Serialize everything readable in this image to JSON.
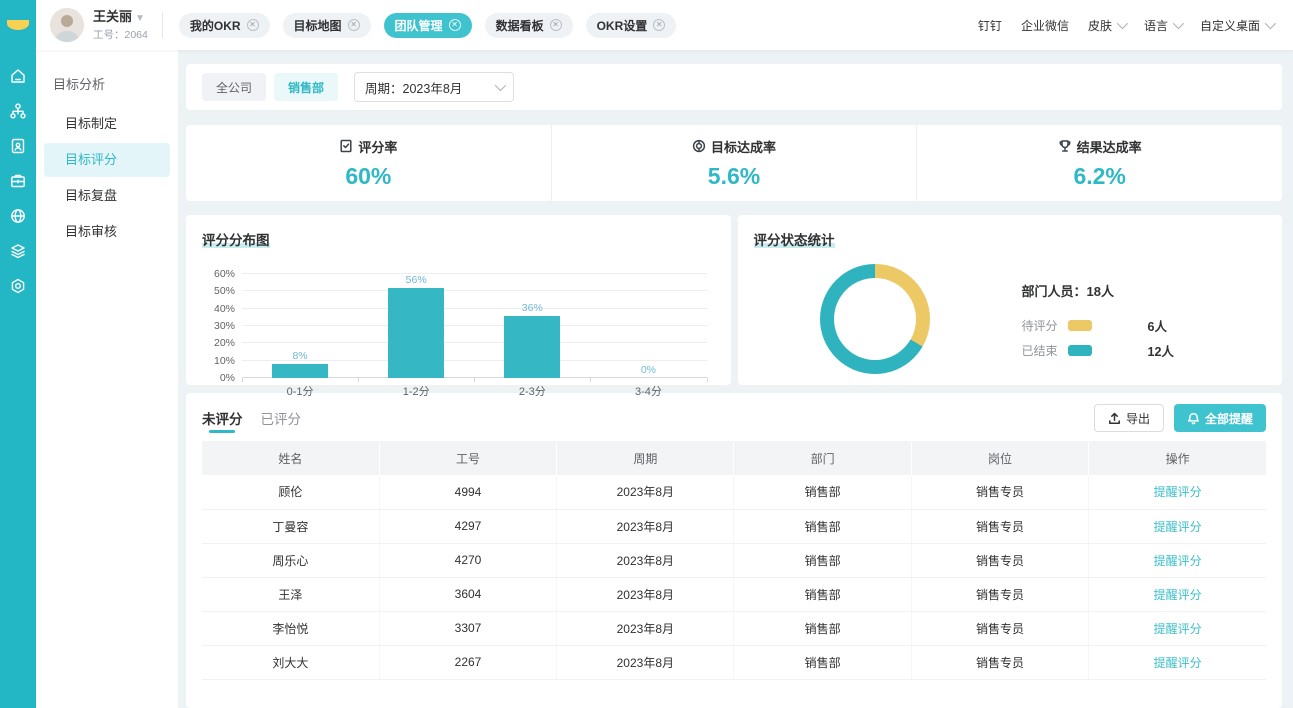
{
  "colors": {
    "accent": "#2FB8C5",
    "accent_bright": "#3EC3CF",
    "rail_bg": "#23B7C6",
    "yellow": "#EDC966",
    "donut_teal": "#2FB3BF",
    "bar_color": "#35B7C4",
    "page_bg": "#EDF3F5"
  },
  "topbar": {
    "user": {
      "name": "王关丽",
      "employee_id": "工号：2064"
    },
    "tags": [
      {
        "label": "我的OKR",
        "active": false
      },
      {
        "label": "目标地图",
        "active": false
      },
      {
        "label": "团队管理",
        "active": true
      },
      {
        "label": "数据看板",
        "active": false
      },
      {
        "label": "OKR设置",
        "active": false
      }
    ],
    "menu": [
      {
        "label": "钉钉",
        "caret": false
      },
      {
        "label": "企业微信",
        "caret": false
      },
      {
        "label": "皮肤",
        "caret": true
      },
      {
        "label": "语言",
        "caret": true
      },
      {
        "label": "自定义桌面",
        "caret": true
      }
    ]
  },
  "rail": {
    "icons": [
      "home-icon",
      "org-chart-icon",
      "document-user-icon",
      "briefcase-icon",
      "globe-icon",
      "layers-icon",
      "gear-icon"
    ],
    "active_index": 3
  },
  "sidebar": {
    "title": "目标分析",
    "items": [
      {
        "label": "目标制定",
        "active": false
      },
      {
        "label": "目标评分",
        "active": true
      },
      {
        "label": "目标复盘",
        "active": false
      },
      {
        "label": "目标审核",
        "active": false
      }
    ]
  },
  "filters": {
    "scope_all": "全公司",
    "scope_dept": "销售部",
    "period": "周期：2023年8月"
  },
  "stats": {
    "items": [
      {
        "label": "评分率",
        "value": "60%"
      },
      {
        "label": "目标达成率",
        "value": "5.6%"
      },
      {
        "label": "结果达成率",
        "value": "6.2%"
      }
    ]
  },
  "chart_data": [
    {
      "type": "bar",
      "title": "评分分布图",
      "categories": [
        "0-1分",
        "1-2分",
        "2-3分",
        "3-4分"
      ],
      "values": [
        8,
        56,
        36,
        0
      ],
      "value_labels": [
        "8%",
        "56%",
        "36%",
        "0%"
      ],
      "ylim": [
        0,
        60
      ],
      "ytick_step": 10,
      "yticks": [
        "0%",
        "10%",
        "20%",
        "30%",
        "40%",
        "50%",
        "60%"
      ],
      "grid": true,
      "bar_color": "#35B7C4"
    },
    {
      "type": "donut",
      "title": "评分状态统计",
      "summary": "部门人员：18人",
      "total": 18,
      "series": [
        {
          "name": "待评分",
          "value": 6,
          "display": "6人",
          "color": "#EDC966"
        },
        {
          "name": "已结束",
          "value": 12,
          "display": "12人",
          "color": "#2FB3BF"
        }
      ],
      "legend_position": "right"
    }
  ],
  "table": {
    "tabs": [
      {
        "label": "未评分",
        "active": true
      },
      {
        "label": "已评分",
        "active": false
      }
    ],
    "export_label": "导出",
    "remind_all_label": "全部提醒",
    "columns": [
      "姓名",
      "工号",
      "周期",
      "部门",
      "岗位",
      "操作"
    ],
    "action_label": "提醒评分",
    "rows": [
      {
        "name": "顾伦",
        "id": "4994",
        "period": "2023年8月",
        "dept": "销售部",
        "post": "销售专员"
      },
      {
        "name": "丁曼容",
        "id": "4297",
        "period": "2023年8月",
        "dept": "销售部",
        "post": "销售专员"
      },
      {
        "name": "周乐心",
        "id": "4270",
        "period": "2023年8月",
        "dept": "销售部",
        "post": "销售专员"
      },
      {
        "name": "王泽",
        "id": "3604",
        "period": "2023年8月",
        "dept": "销售部",
        "post": "销售专员"
      },
      {
        "name": "李怡悦",
        "id": "3307",
        "period": "2023年8月",
        "dept": "销售部",
        "post": "销售专员"
      },
      {
        "name": "刘大大",
        "id": "2267",
        "period": "2023年8月",
        "dept": "销售部",
        "post": "销售专员"
      }
    ]
  }
}
